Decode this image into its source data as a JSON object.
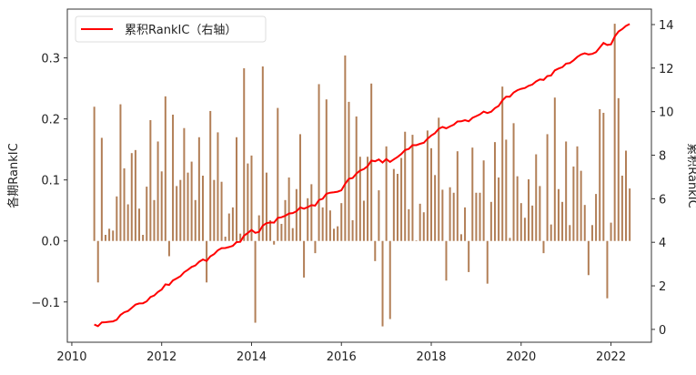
{
  "chart_data": {
    "type": "bar+line",
    "start_month": "2010-07",
    "frequency": "monthly",
    "legend": {
      "label": "累积RankIC（右轴）",
      "placement": "top-left"
    },
    "ylabel_left": "各期RankIC",
    "ylabel_right": "累积RankIC",
    "ylim_left": [
      -0.166,
      0.38
    ],
    "ylim_right": [
      -0.59,
      14.71
    ],
    "xlim": [
      2009.9,
      2022.9
    ],
    "yticks_left": [
      "0.3",
      "0.2",
      "0.1",
      "0.0",
      "−0.1"
    ],
    "yticks_left_values": [
      0.3,
      0.2,
      0.1,
      0.0,
      -0.1
    ],
    "yticks_right": [
      "14",
      "12",
      "10",
      "8",
      "6",
      "4",
      "2",
      "0"
    ],
    "yticks_right_values": [
      14,
      12,
      10,
      8,
      6,
      4,
      2,
      0
    ],
    "xticks": [
      "2010",
      "2012",
      "2014",
      "2016",
      "2018",
      "2020",
      "2022"
    ],
    "xticks_values": [
      2010,
      2012,
      2014,
      2016,
      2018,
      2020,
      2022
    ],
    "grid": false,
    "colors": {
      "bars": "#a5683a",
      "line": "#ff0000"
    },
    "bars": {
      "name": "各期RankIC",
      "values": [
        0.22,
        -0.068,
        0.169,
        0.01,
        0.02,
        0.017,
        0.073,
        0.224,
        0.119,
        0.06,
        0.144,
        0.149,
        0.053,
        0.01,
        0.089,
        0.198,
        0.067,
        0.163,
        0.114,
        0.237,
        -0.025,
        0.207,
        0.09,
        0.1,
        0.185,
        0.112,
        0.13,
        0.067,
        0.17,
        0.107,
        -0.068,
        0.213,
        0.1,
        0.178,
        0.097,
        0.007,
        0.045,
        0.055,
        0.17,
        0.012,
        0.283,
        0.127,
        0.14,
        -0.134,
        0.042,
        0.286,
        0.112,
        0.034,
        -0.006,
        0.218,
        0.028,
        0.067,
        0.104,
        0.021,
        0.085,
        0.175,
        -0.06,
        0.07,
        0.093,
        -0.02,
        0.257,
        0.055,
        0.232,
        0.05,
        0.02,
        0.024,
        0.062,
        0.304,
        0.228,
        0.034,
        0.204,
        0.138,
        0.066,
        0.138,
        0.258,
        -0.033,
        0.083,
        -0.14,
        0.155,
        -0.128,
        0.118,
        0.11,
        0.136,
        0.179,
        0.052,
        0.174,
        0.001,
        0.061,
        0.047,
        0.181,
        0.152,
        0.108,
        0.202,
        0.084,
        -0.065,
        0.088,
        0.079,
        0.147,
        0.011,
        0.055,
        -0.051,
        0.153,
        0.079,
        0.079,
        0.132,
        -0.07,
        0.064,
        0.162,
        0.104,
        0.253,
        0.166,
        0.005,
        0.193,
        0.106,
        0.062,
        0.038,
        0.101,
        0.058,
        0.142,
        0.09,
        -0.02,
        0.175,
        0.027,
        0.235,
        0.085,
        0.064,
        0.163,
        0.026,
        0.122,
        0.155,
        0.115,
        0.059,
        -0.056,
        0.026,
        0.077,
        0.216,
        0.21,
        -0.094,
        0.03,
        0.356,
        0.234,
        0.107,
        0.148,
        0.086
      ]
    },
    "line": {
      "name": "累积RankIC（右轴）",
      "definition": "cumulative sum of bars",
      "final_value": 14.0
    }
  }
}
